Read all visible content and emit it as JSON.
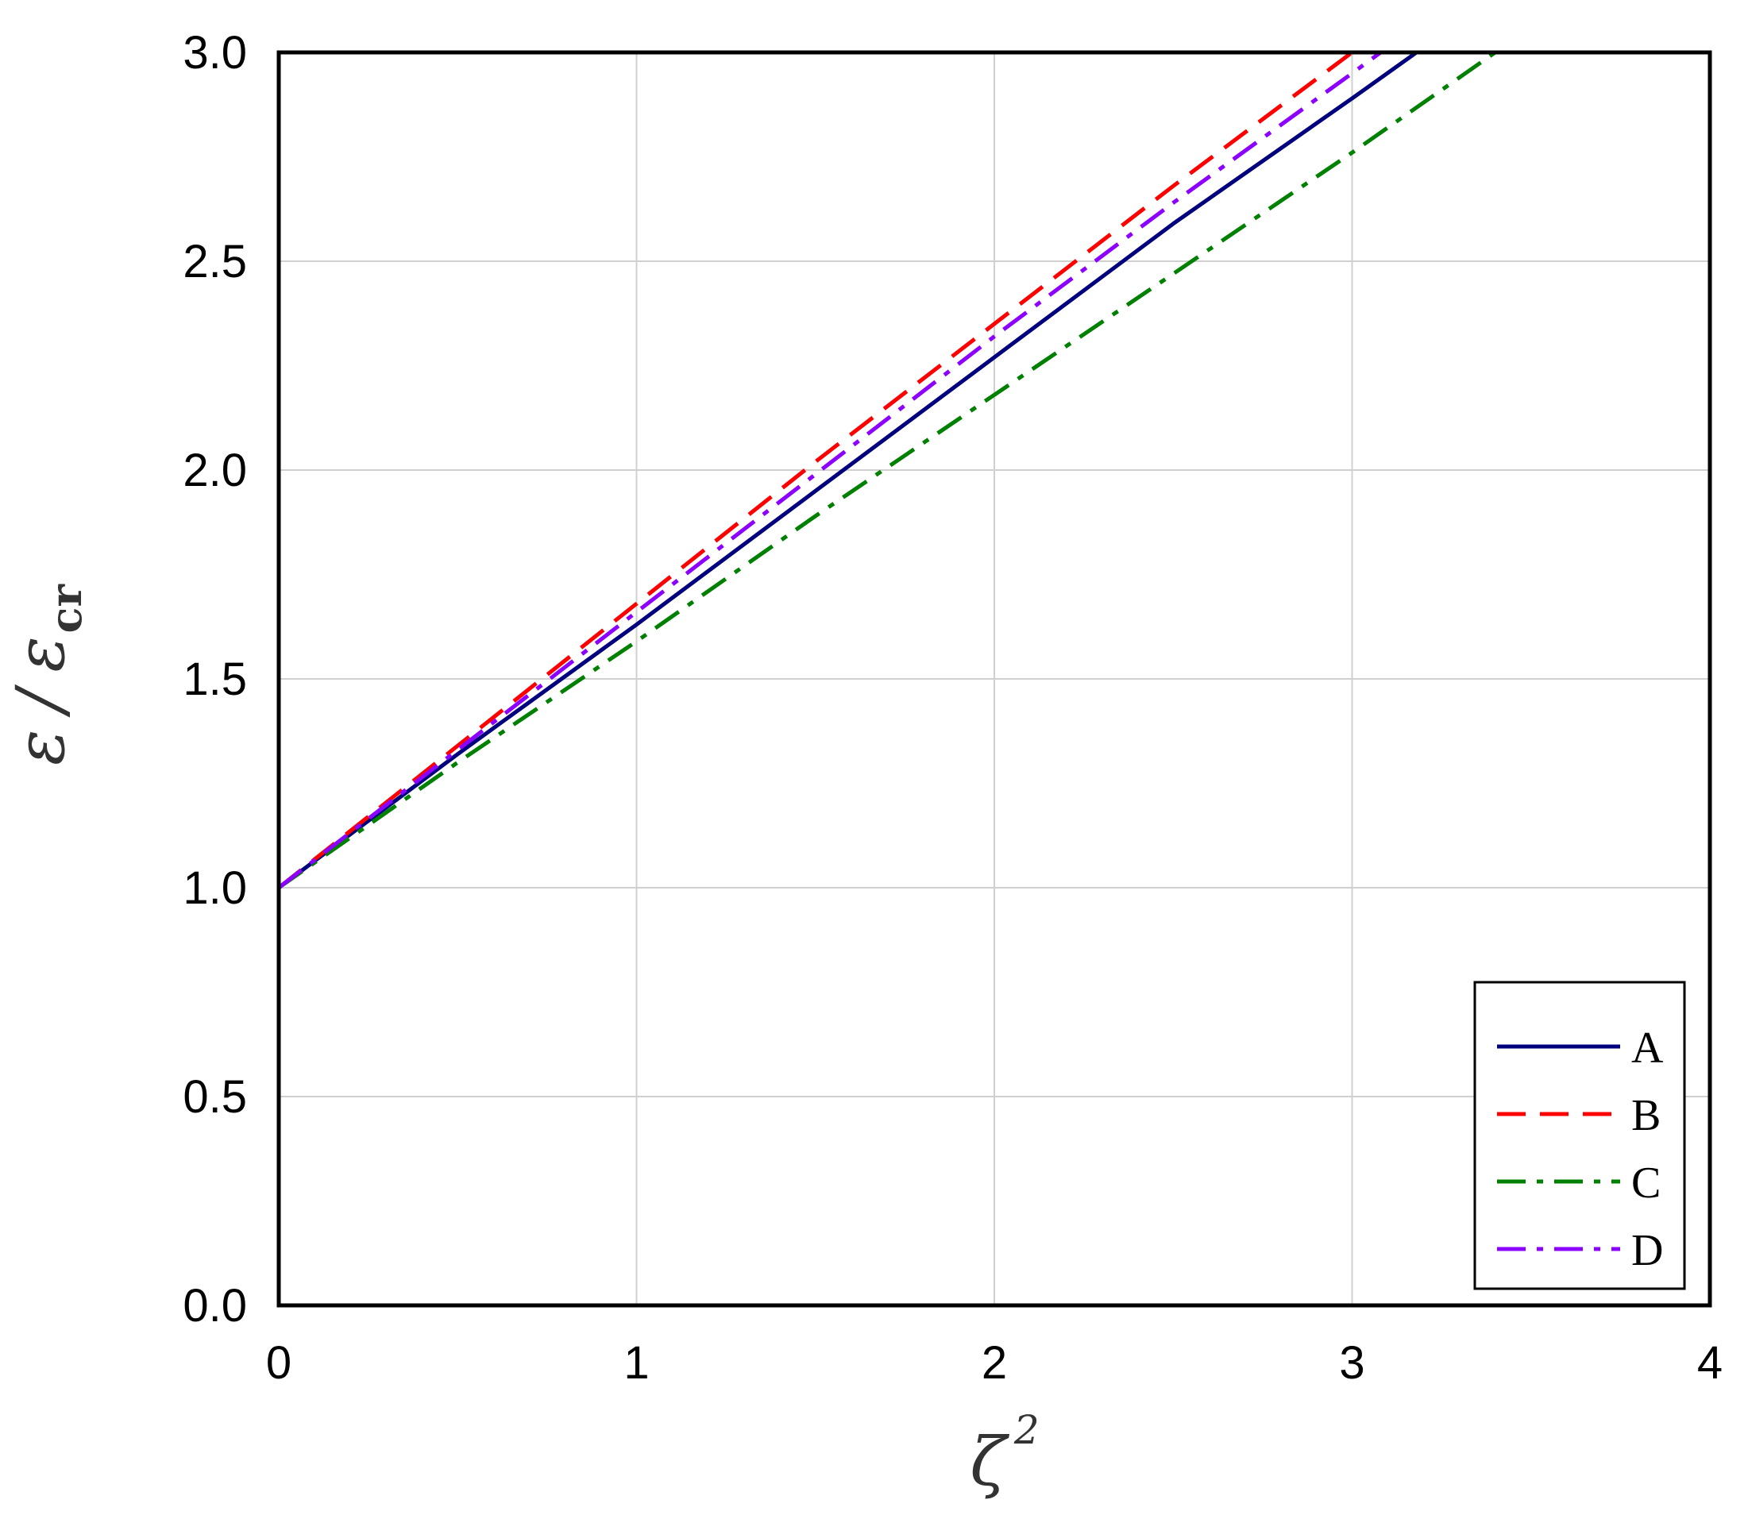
{
  "chart_data": {
    "type": "line",
    "title": "",
    "xlabel": {
      "base": "ζ",
      "superscript": "2"
    },
    "ylabel": {
      "numerator": "ε",
      "slash": "/",
      "denominator": "ε",
      "subscript": "cr"
    },
    "xlim": [
      0,
      4
    ],
    "ylim": [
      0,
      3
    ],
    "xticks": [
      "0",
      "1",
      "2",
      "3",
      "4"
    ],
    "yticks": [
      "0.0",
      "0.5",
      "1.0",
      "1.5",
      "2.0",
      "2.5",
      "3.0"
    ],
    "grid": true,
    "legend_position": "bottom-right",
    "series": [
      {
        "name": "A",
        "color": "#00007f",
        "dash": "solid",
        "x": [
          0,
          0.5,
          1,
          1.5,
          2,
          2.5,
          3,
          3.18
        ],
        "y": [
          1.0,
          1.32,
          1.63,
          1.95,
          2.27,
          2.59,
          2.89,
          3.0
        ]
      },
      {
        "name": "B",
        "color": "#ff0000",
        "dash": "dashed",
        "x": [
          0,
          0.5,
          1,
          1.5,
          2,
          2.5,
          3
        ],
        "y": [
          1.0,
          1.34,
          1.68,
          2.02,
          2.35,
          2.68,
          3.0
        ]
      },
      {
        "name": "C",
        "color": "#008000",
        "dash": "dashdot",
        "x": [
          0,
          0.5,
          1,
          1.5,
          2,
          2.5,
          3,
          3.4
        ],
        "y": [
          1.0,
          1.3,
          1.59,
          1.89,
          2.18,
          2.47,
          2.76,
          3.0
        ]
      },
      {
        "name": "D",
        "color": "#8b00ff",
        "dash": "dashdot",
        "x": [
          0,
          0.5,
          1,
          1.5,
          2,
          2.5,
          3,
          3.08
        ],
        "y": [
          1.0,
          1.33,
          1.66,
          1.99,
          2.32,
          2.64,
          2.95,
          3.0
        ]
      }
    ]
  }
}
